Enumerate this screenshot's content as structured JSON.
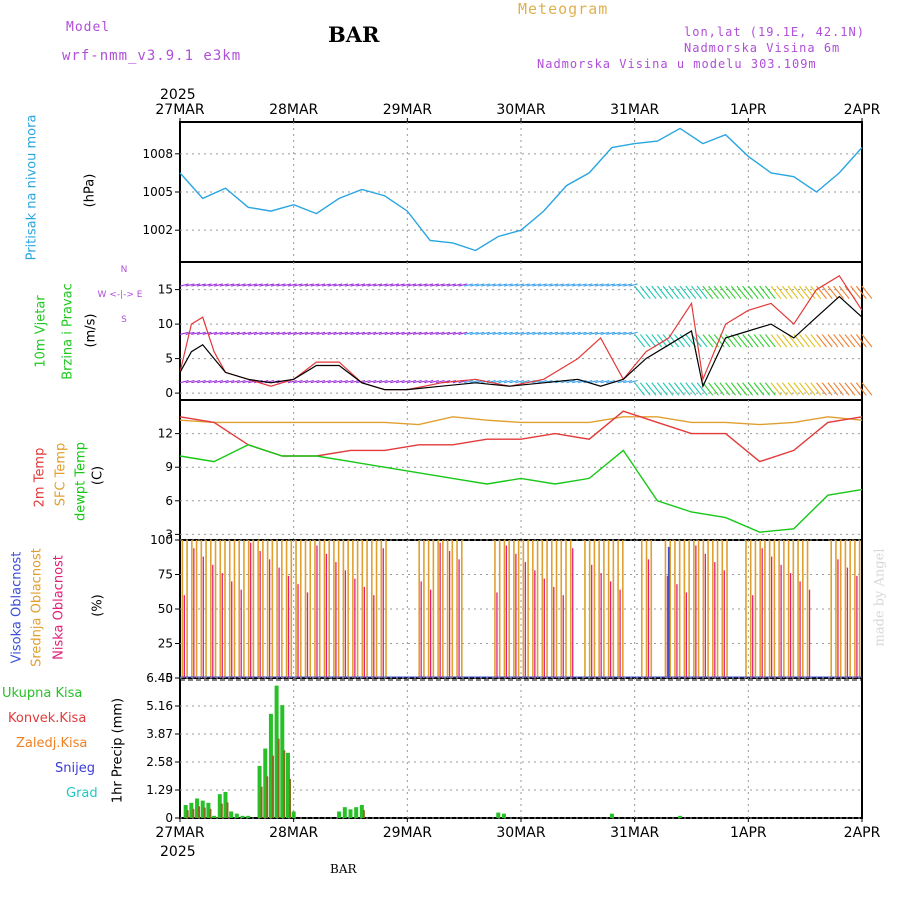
{
  "header": {
    "model_label": "Model",
    "model_name": "wrf-nmm_v3.9.1  e3km",
    "station": "BAR",
    "product": "Meteogram",
    "lonlat": "lon,lat (19.1E, 42.1N)",
    "altitude": "Nadmorska Visina 6m",
    "model_altitude": "Nadmorska Visina u modelu 303.109m",
    "watermark": "made by Angel",
    "footer_station": "BAR"
  },
  "colors": {
    "pressure": "#2aa6e0",
    "wind_label": "#1fc81f",
    "t2m": "#e23a3a",
    "sfc": "#e0a030",
    "dewpt": "#18c818",
    "high_cloud": "#3a4fd8",
    "mid_cloud": "#e0a030",
    "low_cloud": "#e0207a",
    "rain_total": "#28c028",
    "rain_conv": "#e23a3a",
    "rain_frz": "#f08020",
    "snow": "#3a3ad8",
    "grad": "#20c8c8"
  },
  "chart_data": [
    {
      "id": "pressure",
      "type": "line",
      "title": "Pritisak na nivou mora",
      "ylabel": "(hPa)",
      "ylim": [
        999.5,
        1010.5
      ],
      "yticks": [
        "1002",
        "1005",
        "1008"
      ],
      "x": [
        0,
        0.2,
        0.4,
        0.6,
        0.8,
        1.0,
        1.2,
        1.4,
        1.6,
        1.8,
        2.0,
        2.2,
        2.4,
        2.6,
        2.8,
        3.0,
        3.2,
        3.4,
        3.6,
        3.8,
        4.0,
        4.2,
        4.4,
        4.6,
        4.8,
        5.0,
        5.2,
        5.4,
        5.6,
        5.8,
        6.0
      ],
      "series": [
        {
          "name": "Pritisak",
          "values": [
            1006.5,
            1004.5,
            1005.3,
            1003.8,
            1003.5,
            1004.0,
            1003.3,
            1004.5,
            1005.2,
            1004.7,
            1003.5,
            1001.2,
            1001.0,
            1000.4,
            1001.5,
            1002.0,
            1003.5,
            1005.5,
            1006.5,
            1008.5,
            1008.8,
            1009.0,
            1010.0,
            1008.8,
            1009.5,
            1007.8,
            1006.5,
            1006.2,
            1005.0,
            1006.5,
            1008.5
          ]
        }
      ]
    },
    {
      "id": "wind",
      "type": "line",
      "title": "10m Vjetar Brzina i Pravac",
      "ylabel": "(m/s)",
      "ylim": [
        -1,
        19
      ],
      "yticks": [
        "0",
        "5",
        "10",
        "15"
      ],
      "compass": "N | W <-|-> E | S",
      "x": [
        0,
        0.1,
        0.2,
        0.3,
        0.4,
        0.6,
        0.8,
        1.0,
        1.2,
        1.4,
        1.6,
        1.8,
        2.0,
        2.3,
        2.6,
        2.9,
        3.2,
        3.5,
        3.7,
        3.9,
        4.1,
        4.3,
        4.5,
        4.6,
        4.8,
        5.0,
        5.2,
        5.4,
        5.6,
        5.8,
        6.0
      ],
      "series": [
        {
          "name": "mean",
          "values": [
            3,
            6,
            7,
            5,
            3,
            2,
            1.5,
            2,
            4,
            4,
            1.5,
            0.5,
            0.5,
            1,
            1.5,
            1,
            1.5,
            2,
            1,
            2,
            5,
            7,
            9,
            1,
            8,
            9,
            10,
            8,
            11,
            14,
            11
          ]
        },
        {
          "name": "gust",
          "values": [
            3,
            10,
            11,
            6,
            3,
            2,
            1,
            2,
            4.5,
            4.5,
            1.5,
            0.5,
            0.5,
            1.5,
            2,
            1,
            2,
            5,
            8,
            2,
            6,
            8,
            13,
            2,
            10,
            12,
            13,
            10,
            15,
            17,
            12
          ]
        }
      ]
    },
    {
      "id": "temp",
      "type": "line",
      "title": "2m Temp / SFC Temp / dewpt Temp",
      "ylabel": "(C)",
      "ylim": [
        2.5,
        15
      ],
      "yticks": [
        "3",
        "6",
        "9",
        "12"
      ],
      "x": [
        0,
        0.3,
        0.6,
        0.9,
        1.2,
        1.5,
        1.8,
        2.1,
        2.4,
        2.7,
        3.0,
        3.3,
        3.6,
        3.9,
        4.2,
        4.5,
        4.8,
        5.1,
        5.4,
        5.7,
        6.0
      ],
      "series": [
        {
          "name": "2m Temp",
          "values": [
            13.5,
            13,
            11,
            10,
            10,
            10.5,
            10.5,
            11,
            11,
            11.5,
            11.5,
            12,
            11.5,
            14,
            13,
            12,
            12,
            9.5,
            10.5,
            13,
            13.5
          ]
        },
        {
          "name": "SFC Temp",
          "values": [
            13.2,
            13,
            13,
            13,
            13,
            13,
            13,
            12.8,
            13.5,
            13.2,
            13,
            13,
            13,
            13.5,
            13.5,
            13,
            13,
            12.8,
            13,
            13.5,
            13.2
          ]
        },
        {
          "name": "dewpt Temp",
          "values": [
            10,
            9.5,
            11,
            10,
            10,
            9.5,
            9,
            8.5,
            8,
            7.5,
            8,
            7.5,
            8,
            10.5,
            6,
            5,
            4.5,
            3.2,
            3.5,
            6.5,
            7
          ]
        }
      ]
    },
    {
      "id": "cloud",
      "type": "bar",
      "title": "Visoka / Srednja / Niska Oblacnost",
      "ylabel": "(%)",
      "ylim": [
        0,
        100
      ],
      "yticks": [
        "0",
        "25",
        "50",
        "75",
        "100"
      ],
      "series": [
        {
          "name": "Srednja Oblacnost",
          "pattern": "mostly 100 with gaps near 28.8-29.1, 29.4, 30.5-30.7, 31.0, 31.9"
        },
        {
          "name": "Niska Oblacnost",
          "pattern": "frequent tall spikes"
        },
        {
          "name": "Visoka Oblacnost",
          "pattern": "rare, near 31MAR 08h"
        }
      ]
    },
    {
      "id": "precip",
      "type": "bar",
      "title": "1hr Precip",
      "ylabel": "1hr Precip (mm)",
      "ylim": [
        0,
        6.45
      ],
      "yticks": [
        "0",
        "1.29",
        "2.58",
        "3.87",
        "5.16",
        "6.45"
      ],
      "legend": [
        "Ukupna Kisa",
        "Konvek.Kisa",
        "Zaledj.Kisa",
        "Snijeg",
        "Grad"
      ],
      "x": [
        0.05,
        0.1,
        0.15,
        0.2,
        0.25,
        0.3,
        0.35,
        0.4,
        0.45,
        0.5,
        0.55,
        0.6,
        0.7,
        0.75,
        0.8,
        0.85,
        0.9,
        0.95,
        1.0,
        1.4,
        1.45,
        1.5,
        1.55,
        1.6,
        2.8,
        2.85,
        3.8,
        4.4
      ],
      "series": [
        {
          "name": "Ukupna Kisa",
          "values": [
            0.6,
            0.7,
            0.9,
            0.8,
            0.7,
            0.1,
            1.1,
            1.2,
            0.3,
            0.2,
            0.1,
            0.1,
            2.4,
            3.2,
            4.8,
            6.1,
            5.2,
            3.0,
            0.3,
            0.3,
            0.5,
            0.4,
            0.5,
            0.6,
            0.25,
            0.2,
            0.2,
            0.1
          ]
        }
      ]
    }
  ],
  "axis": {
    "year": "2025",
    "dates": [
      "27MAR",
      "28MAR",
      "29MAR",
      "30MAR",
      "31MAR",
      "1APR",
      "2APR"
    ]
  },
  "labels": {
    "pressure": "Pritisak na nivou mora",
    "pressure_unit": "(hPa)",
    "wind_a": "10m Vjetar",
    "wind_b": "Brzina i Pravac",
    "wind_unit": "(m/s)",
    "t2m": "2m Temp",
    "sfc": "SFC Temp",
    "dewpt": "dewpt Temp",
    "temp_unit": "(C)",
    "vis": "Visoka Oblacnost",
    "mid": "Srednja Oblacnost",
    "low": "Niska Oblacnost",
    "cloud_unit": "(%)",
    "precip_unit": "1hr Precip (mm)",
    "rain_total": "Ukupna Kisa",
    "rain_conv": "Konvek.Kisa",
    "rain_frz": "Zaledj.Kisa",
    "snow": "Snijeg",
    "grad": "Grad"
  }
}
